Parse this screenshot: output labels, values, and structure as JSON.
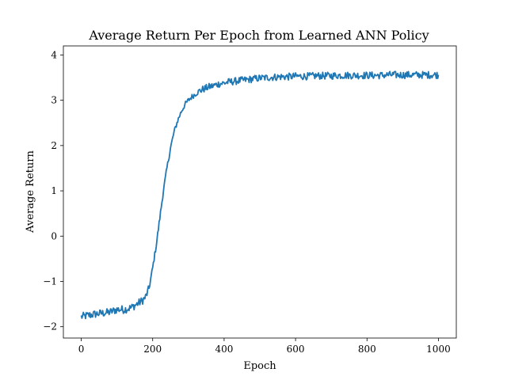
{
  "chart_data": {
    "type": "line",
    "title": "Average Return Per Epoch from Learned ANN Policy",
    "xlabel": "Epoch",
    "ylabel": "Average Return",
    "xlim": [
      -50,
      1050
    ],
    "ylim": [
      -2.25,
      4.2
    ],
    "xticks": [
      0,
      200,
      400,
      600,
      800,
      1000
    ],
    "yticks": [
      -2,
      -1,
      0,
      1,
      2,
      3,
      4
    ],
    "ytick_labels": [
      "−2",
      "−1",
      "0",
      "1",
      "2",
      "3",
      "4"
    ],
    "grid": false,
    "legend": "none",
    "series": [
      {
        "color": "#1f77b4",
        "x": [
          0,
          20,
          40,
          60,
          80,
          100,
          120,
          140,
          160,
          170,
          180,
          190,
          200,
          210,
          220,
          230,
          240,
          250,
          260,
          270,
          280,
          290,
          300,
          310,
          320,
          330,
          340,
          350,
          360,
          370,
          380,
          390,
          400,
          410,
          420,
          430,
          440,
          450,
          460,
          480,
          500,
          520,
          540,
          560,
          580,
          600,
          620,
          640,
          660,
          680,
          700,
          720,
          740,
          760,
          780,
          800,
          820,
          840,
          860,
          880,
          900,
          920,
          940,
          960,
          980,
          1000
        ],
        "values": [
          -1.78,
          -1.75,
          -1.72,
          -1.7,
          -1.68,
          -1.62,
          -1.62,
          -1.58,
          -1.48,
          -1.43,
          -1.35,
          -1.15,
          -0.7,
          -0.2,
          0.4,
          1.0,
          1.5,
          1.95,
          2.3,
          2.55,
          2.75,
          2.9,
          3.0,
          3.08,
          3.14,
          3.2,
          3.24,
          3.27,
          3.3,
          3.32,
          3.35,
          3.37,
          3.38,
          3.4,
          3.41,
          3.42,
          3.43,
          3.44,
          3.45,
          3.47,
          3.49,
          3.5,
          3.51,
          3.52,
          3.52,
          3.53,
          3.53,
          3.53,
          3.54,
          3.54,
          3.54,
          3.55,
          3.55,
          3.55,
          3.55,
          3.55,
          3.55,
          3.55,
          3.56,
          3.56,
          3.56,
          3.56,
          3.56,
          3.56,
          3.56,
          3.56
        ]
      }
    ]
  }
}
